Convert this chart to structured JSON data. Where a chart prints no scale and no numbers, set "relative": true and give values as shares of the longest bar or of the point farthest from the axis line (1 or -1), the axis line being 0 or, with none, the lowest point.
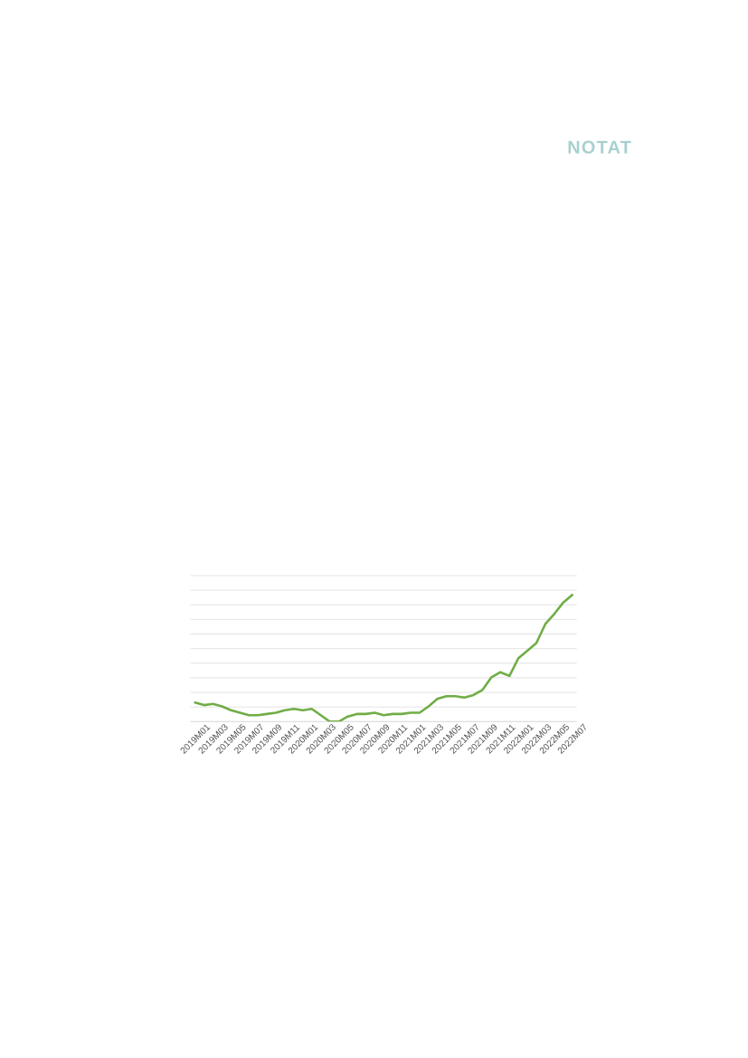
{
  "chart_data": {
    "type": "line",
    "relative": true,
    "color": "#70ad47",
    "grid": "y",
    "tick_labels": "x",
    "categories": [
      "2019M01",
      null,
      "2019M03",
      null,
      "2019M05",
      null,
      "2019M07",
      null,
      "2019M09",
      null,
      "2019M11",
      null,
      "2020M01",
      null,
      "2020M03",
      null,
      "2020M05",
      null,
      "2020M07",
      null,
      "2020M09",
      null,
      "2020M11",
      null,
      "2021M01",
      null,
      "2021M03",
      null,
      "2021M05",
      null,
      "2021M07",
      null,
      "2021M09",
      null,
      "2021M11",
      null,
      "2022M01",
      null,
      "2022M03",
      null,
      "2022M05",
      null,
      "2022M07"
    ],
    "values": [
      0.15,
      0.13,
      0.14,
      0.12,
      0.09,
      0.07,
      0.05,
      0.05,
      0.06,
      0.07,
      0.09,
      0.1,
      0.09,
      0.1,
      0.05,
      0.0,
      0.0,
      0.04,
      0.06,
      0.06,
      0.07,
      0.05,
      0.06,
      0.06,
      0.07,
      0.07,
      0.12,
      0.18,
      0.2,
      0.2,
      0.19,
      0.21,
      0.25,
      0.35,
      0.39,
      0.36,
      0.5,
      0.56,
      0.62,
      0.77,
      0.85,
      0.94,
      1.0
    ],
    "annotations": [
      "NOTAT"
    ]
  }
}
